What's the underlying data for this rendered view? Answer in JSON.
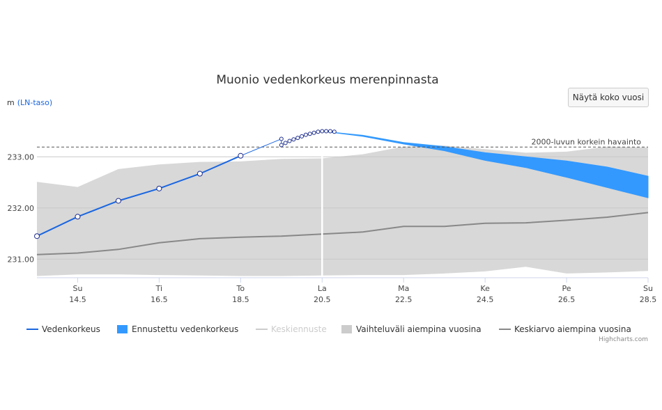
{
  "button": {
    "show_full_year": "Näytä koko vuosi"
  },
  "chart_data": {
    "type": "line",
    "title": "Muonio vedenkorkeus merenpinnasta",
    "ylabel_unit": "m",
    "ylabel_ref": "(LN-taso)",
    "ylim": [
      230.65,
      233.82
    ],
    "xlim": [
      13.5,
      28.5
    ],
    "yticks": [
      {
        "value": 231.0,
        "label": "231.00"
      },
      {
        "value": 232.0,
        "label": "232.00"
      },
      {
        "value": 233.0,
        "label": "233.00"
      }
    ],
    "xticks": [
      {
        "value": 14.5,
        "day": "Su",
        "date": "14.5"
      },
      {
        "value": 16.5,
        "day": "Ti",
        "date": "16.5"
      },
      {
        "value": 18.5,
        "day": "To",
        "date": "18.5"
      },
      {
        "value": 20.5,
        "day": "La",
        "date": "20.5"
      },
      {
        "value": 22.5,
        "day": "Ma",
        "date": "22.5"
      },
      {
        "value": 24.5,
        "day": "Ke",
        "date": "24.5"
      },
      {
        "value": 26.5,
        "day": "Pe",
        "date": "26.5"
      },
      {
        "value": 28.5,
        "day": "Su",
        "date": "28.5"
      }
    ],
    "plot_line": {
      "x": 20.5
    },
    "plot_band_line": {
      "value": 233.19,
      "label": "2000-luvun korkein havainto"
    },
    "range_band": {
      "name": "Vaihteluväli aiempina vuosina",
      "color": "#d8d8d8",
      "x": [
        13.5,
        14.5,
        15.5,
        16.5,
        17.5,
        18.5,
        19.5,
        20.5,
        21.5,
        22.5,
        23.5,
        24.5,
        25.5,
        26.5,
        27.5,
        28.5
      ],
      "low": [
        230.67,
        230.7,
        230.7,
        230.69,
        230.68,
        230.67,
        230.67,
        230.68,
        230.69,
        230.69,
        230.72,
        230.76,
        230.85,
        230.72,
        230.74,
        230.77
      ],
      "high": [
        232.51,
        232.41,
        232.76,
        232.85,
        232.9,
        232.91,
        232.96,
        232.97,
        233.05,
        233.2,
        233.22,
        233.15,
        233.08,
        233.1,
        233.2,
        233.18
      ]
    },
    "mean": {
      "name": "Keskiarvo aiempina vuosina",
      "color": "#888888",
      "x": [
        13.5,
        14.5,
        15.5,
        16.5,
        17.5,
        18.5,
        19.5,
        20.5,
        21.5,
        22.5,
        23.5,
        24.5,
        25.5,
        26.5,
        27.5,
        28.5
      ],
      "values": [
        231.09,
        231.12,
        231.19,
        231.32,
        231.4,
        231.43,
        231.45,
        231.49,
        231.53,
        231.64,
        231.64,
        231.7,
        231.71,
        231.76,
        231.82,
        231.91
      ]
    },
    "observed": {
      "name": "Vedenkorkeus",
      "color": "#1a66e0",
      "x": [
        13.5,
        14.5,
        15.5,
        16.5,
        17.5,
        18.5
      ],
      "values": [
        231.45,
        231.83,
        232.14,
        232.38,
        232.67,
        233.02
      ]
    },
    "observed_dense": {
      "color": "#1a66e0",
      "x": [
        19.5,
        19.5,
        19.6,
        19.7,
        19.8,
        19.9,
        20.0,
        20.1,
        20.2,
        20.3,
        20.4,
        20.5,
        20.6,
        20.7,
        20.8
      ],
      "values": [
        233.35,
        233.23,
        233.27,
        233.31,
        233.34,
        233.37,
        233.4,
        233.43,
        233.45,
        233.47,
        233.49,
        233.5,
        233.5,
        233.5,
        233.49
      ]
    },
    "forecast_band": {
      "name": "Ennustettu vedenkorkeus",
      "color": "#3399ff",
      "x": [
        20.5,
        21.5,
        22.5,
        23.5,
        24.5,
        25.5,
        26.5,
        27.5,
        28.5
      ],
      "low": [
        233.5,
        233.4,
        233.25,
        233.12,
        232.93,
        232.79,
        232.6,
        232.4,
        232.2
      ],
      "high": [
        233.5,
        233.42,
        233.28,
        233.2,
        233.08,
        233.0,
        232.92,
        232.8,
        232.62
      ]
    },
    "legend": [
      {
        "name": "Vedenkorkeus",
        "symbol": "line",
        "color": "#1a66e0",
        "enabled": true
      },
      {
        "name": "Ennustettu vedenkorkeus",
        "symbol": "box",
        "color": "#3399ff",
        "enabled": true
      },
      {
        "name": "Keskiennuste",
        "symbol": "line",
        "color": "#cccccc",
        "enabled": false
      },
      {
        "name": "Vaihteluväli aiempina vuosina",
        "symbol": "box",
        "color": "#cccccc",
        "enabled": true
      },
      {
        "name": "Keskiarvo aiempina vuosina",
        "symbol": "line",
        "color": "#888888",
        "enabled": true
      }
    ],
    "credits": "Highcharts.com"
  }
}
